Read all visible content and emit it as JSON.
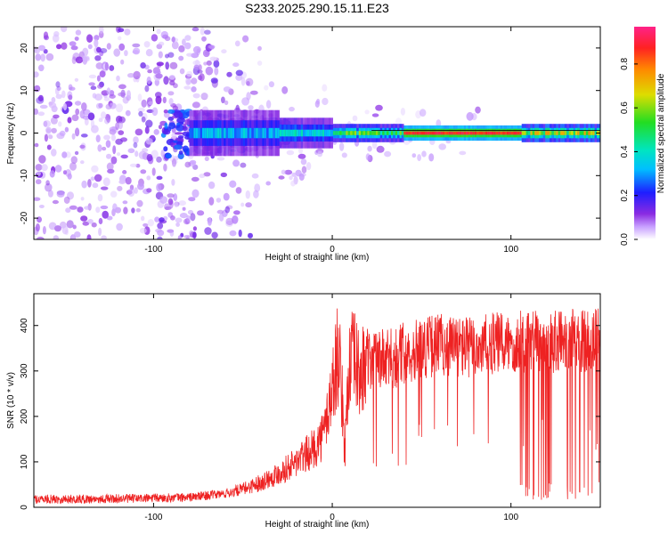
{
  "title": "S233.2025.290.15.11.E23",
  "chart_data": [
    {
      "type": "heatmap",
      "title": "S233.2025.290.15.11.E23",
      "xlabel": "Height of straight line (km)",
      "ylabel": "Frequency (Hz)",
      "xlim": [
        -167,
        150
      ],
      "ylim": [
        -25,
        25
      ],
      "xticks": [
        -100,
        0,
        100
      ],
      "yticks": [
        -20,
        -10,
        0,
        10,
        20
      ],
      "colorbar": {
        "label": "Normalized spectral amplitude",
        "range": [
          0,
          0.97
        ],
        "ticks": [
          "0.0",
          "0.2",
          "0.4",
          "0.6",
          "0.8"
        ]
      },
      "description_of_signal": {
        "peak_frequency_hz": 0,
        "strong_band_start_km": 40,
        "strong_band_end_km": 105,
        "noise_region_end_km": -30
      }
    },
    {
      "type": "line",
      "xlabel": "Height of straight line (km)",
      "ylabel": "SNR (10 * v/v)",
      "xlim": [
        -167,
        150
      ],
      "ylim": [
        0,
        470
      ],
      "xticks": [
        -100,
        0,
        100
      ],
      "yticks": [
        0,
        100,
        200,
        300,
        400
      ],
      "color": "#ee2222",
      "series": [
        {
          "name": "SNR",
          "x": [
            -167,
            -140,
            -120,
            -100,
            -80,
            -60,
            -50,
            -40,
            -30,
            -20,
            -15,
            -10,
            -5,
            0,
            3,
            5,
            7,
            9,
            12,
            15,
            20,
            25,
            30,
            40,
            50,
            60,
            70,
            80,
            90,
            100,
            110,
            120,
            130,
            140,
            150
          ],
          "y": [
            18,
            18,
            19,
            20,
            22,
            30,
            40,
            55,
            75,
            100,
            115,
            130,
            160,
            260,
            340,
            280,
            120,
            300,
            330,
            290,
            310,
            330,
            320,
            340,
            350,
            360,
            355,
            350,
            360,
            360,
            365,
            360,
            370,
            365,
            370
          ]
        }
      ]
    }
  ]
}
